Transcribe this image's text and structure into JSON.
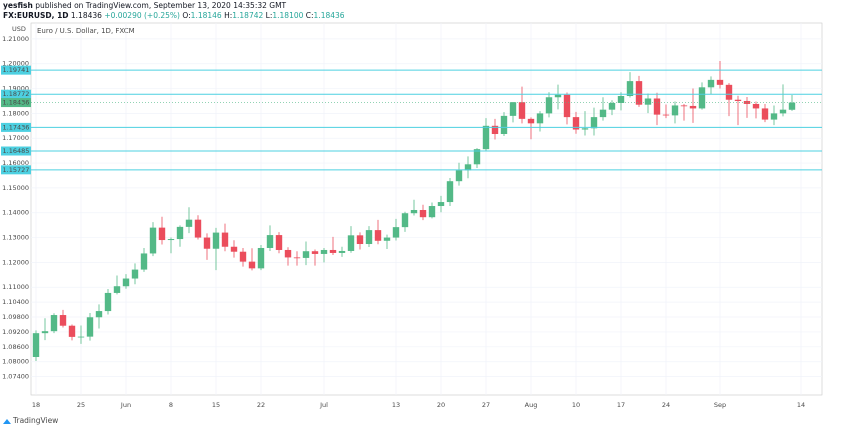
{
  "header": {
    "publisher": "yesfish",
    "published": "published on TradingView.com, September 13, 2020 14:35:32 GMT",
    "symbol": "FX:EURUSD, 1D",
    "price": "1.18436",
    "change": "+0.00290 (+0.25%)",
    "o_label": "O:",
    "open": "1.18146",
    "h_label": "H:",
    "high": "1.18742",
    "l_label": "L:",
    "low": "1.18100",
    "c_label": "C:",
    "close": "1.18436"
  },
  "footer": {
    "brand": "TradingView"
  },
  "chart_data": {
    "type": "candlestick",
    "title": "Euro / U.S. Dollar, 1D, FXCM",
    "y_unit": "USD",
    "up_color": "#53b987",
    "down_color": "#eb4d5c",
    "grid": true,
    "categories": [
      "18",
      null,
      null,
      null,
      null,
      "25",
      null,
      null,
      null,
      null,
      "Jun",
      null,
      null,
      null,
      null,
      "8",
      null,
      null,
      null,
      null,
      "15",
      null,
      null,
      null,
      null,
      "22",
      null,
      null,
      null,
      null,
      null,
      null,
      "Jul",
      null,
      null,
      null,
      null,
      null,
      null,
      null,
      "13",
      null,
      null,
      null,
      null,
      "20",
      null,
      null,
      null,
      null,
      "27",
      null,
      null,
      null,
      null,
      "Aug",
      null,
      null,
      null,
      null,
      "10",
      null,
      null,
      null,
      null,
      "17",
      null,
      null,
      null,
      null,
      "24",
      null,
      null,
      null,
      null,
      null,
      "Sep",
      null,
      null,
      null,
      null,
      null,
      null,
      null,
      null,
      "14"
    ],
    "open": [
      1.0819,
      1.0915,
      1.0923,
      1.0988,
      1.0945,
      1.09,
      1.0901,
      1.0979,
      1.1004,
      1.1077,
      1.1104,
      1.1135,
      1.1171,
      1.1236,
      1.134,
      1.129,
      1.1294,
      1.1343,
      1.1372,
      1.13,
      1.1255,
      1.132,
      1.1263,
      1.1243,
      1.1203,
      1.1176,
      1.1258,
      1.131,
      1.125,
      1.122,
      1.1218,
      1.1245,
      1.1234,
      1.125,
      1.1238,
      1.1246,
      1.1309,
      1.1274,
      1.133,
      1.1287,
      1.13,
      1.1342,
      1.1398,
      1.1411,
      1.1382,
      1.1427,
      1.1443,
      1.1527,
      1.1571,
      1.1595,
      1.1656,
      1.175,
      1.1717,
      1.179,
      1.1845,
      1.1778,
      1.176,
      1.18,
      1.1865,
      1.1875,
      1.1785,
      1.1735,
      1.174,
      1.1785,
      1.1815,
      1.1842,
      1.187,
      1.193,
      1.1835,
      1.186,
      1.1795,
      1.1792,
      1.1832,
      1.183,
      1.182,
      1.1905,
      1.1935,
      1.1915,
      1.1855,
      1.185,
      1.1838,
      1.182,
      1.1775,
      1.18,
      1.18146,
      null
    ],
    "high": [
      1.0926,
      1.0975,
      1.0995,
      1.1009,
      1.095,
      1.0946,
      1.0996,
      1.1031,
      1.1093,
      1.1147,
      1.1153,
      1.1196,
      1.1258,
      1.1362,
      1.1384,
      1.13,
      1.1349,
      1.1422,
      1.139,
      1.1317,
      1.1339,
      1.1356,
      1.1289,
      1.1258,
      1.1257,
      1.127,
      1.1349,
      1.1322,
      1.1261,
      1.1245,
      1.1284,
      1.1252,
      1.1258,
      1.1303,
      1.1263,
      1.1346,
      1.1321,
      1.1346,
      1.1371,
      1.1312,
      1.1375,
      1.1404,
      1.1452,
      1.1432,
      1.1441,
      1.1468,
      1.154,
      1.1601,
      1.1627,
      1.166,
      1.1781,
      1.1778,
      1.1805,
      1.1846,
      1.1908,
      1.1784,
      1.1809,
      1.1885,
      1.1916,
      1.1884,
      1.1806,
      1.1809,
      1.1823,
      1.1865,
      1.1853,
      1.1885,
      1.1966,
      1.1951,
      1.188,
      1.1883,
      1.1836,
      1.1848,
      1.1838,
      1.19,
      1.1925,
      1.1949,
      1.2011,
      1.1922,
      1.1871,
      1.1866,
      1.1848,
      1.1838,
      1.1832,
      1.1917,
      1.18742,
      null
    ],
    "low": [
      1.0803,
      1.0887,
      1.0915,
      1.0938,
      1.0886,
      1.0872,
      1.0885,
      1.0934,
      1.099,
      1.1071,
      1.1094,
      1.1112,
      1.1162,
      1.1225,
      1.1272,
      1.1237,
      1.1263,
      1.1318,
      1.1292,
      1.121,
      1.1169,
      1.1245,
      1.1219,
      1.1183,
      1.1168,
      1.1169,
      1.1246,
      1.1237,
      1.1187,
      1.1187,
      1.1189,
      1.1187,
      1.12,
      1.123,
      1.1222,
      1.1239,
      1.1252,
      1.1262,
      1.1273,
      1.1254,
      1.1288,
      1.1323,
      1.1389,
      1.137,
      1.1377,
      1.1402,
      1.1427,
      1.1509,
      1.1539,
      1.158,
      1.165,
      1.1695,
      1.1709,
      1.1764,
      1.176,
      1.1696,
      1.1727,
      1.1784,
      1.1816,
      1.1756,
      1.1718,
      1.1711,
      1.1711,
      1.1771,
      1.1793,
      1.1812,
      1.1864,
      1.1826,
      1.1801,
      1.1753,
      1.1781,
      1.176,
      1.1771,
      1.1762,
      1.1815,
      1.1877,
      1.19,
      1.1789,
      1.1753,
      1.1782,
      1.178,
      1.1765,
      1.1753,
      1.1788,
      1.181,
      null
    ],
    "close": [
      1.0915,
      1.0923,
      1.0988,
      1.0945,
      1.09,
      1.0901,
      1.0979,
      1.1004,
      1.1077,
      1.1104,
      1.1135,
      1.1171,
      1.1236,
      1.134,
      1.129,
      1.1294,
      1.1343,
      1.1372,
      1.13,
      1.1255,
      1.132,
      1.1263,
      1.1243,
      1.1203,
      1.1176,
      1.1258,
      1.131,
      1.125,
      1.122,
      1.1218,
      1.1245,
      1.1234,
      1.125,
      1.1238,
      1.1246,
      1.1309,
      1.1274,
      1.133,
      1.1287,
      1.13,
      1.1342,
      1.1398,
      1.1411,
      1.1382,
      1.1427,
      1.1443,
      1.1527,
      1.1571,
      1.1595,
      1.1656,
      1.175,
      1.1717,
      1.179,
      1.1845,
      1.1778,
      1.176,
      1.18,
      1.1865,
      1.1875,
      1.1785,
      1.1735,
      1.174,
      1.1785,
      1.1815,
      1.1842,
      1.187,
      1.193,
      1.1835,
      1.186,
      1.1795,
      1.1792,
      1.1832,
      1.183,
      1.182,
      1.1905,
      1.1935,
      1.1915,
      1.1855,
      1.185,
      1.1838,
      1.182,
      1.1775,
      1.18,
      1.1815,
      1.18436,
      null
    ],
    "ylim": [
      1.0666,
      1.2164
    ],
    "yticks": [
      {
        "value": 1.21,
        "label": "1.21000"
      },
      {
        "value": 1.2,
        "label": "1.20000"
      },
      {
        "value": 1.19,
        "label": "1.19000"
      },
      {
        "value": 1.18,
        "label": "1.18000"
      },
      {
        "value": 1.17,
        "label": "1.17000"
      },
      {
        "value": 1.16,
        "label": "1.16000"
      },
      {
        "value": 1.15,
        "label": "1.15000"
      },
      {
        "value": 1.14,
        "label": "1.14000"
      },
      {
        "value": 1.13,
        "label": "1.13000"
      },
      {
        "value": 1.12,
        "label": "1.12000"
      },
      {
        "value": 1.11,
        "label": "1.11000"
      },
      {
        "value": 1.104,
        "label": "1.10400"
      },
      {
        "value": 1.098,
        "label": "1.09800"
      },
      {
        "value": 1.092,
        "label": "1.09200"
      },
      {
        "value": 1.086,
        "label": "1.08600"
      },
      {
        "value": 1.08,
        "label": "1.08000"
      },
      {
        "value": 1.074,
        "label": "1.07400"
      }
    ],
    "price_lines": [
      1.19741,
      1.18772,
      1.17436,
      1.16485,
      1.15727
    ],
    "price_line_color": "#4dd0e1",
    "last_price": 1.18436
  }
}
